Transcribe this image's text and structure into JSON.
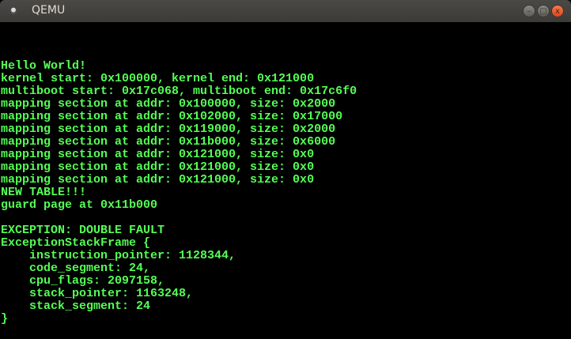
{
  "window": {
    "title": "QEMU",
    "icon": "qemu-app-icon"
  },
  "controls": {
    "minimize": "–",
    "maximize": "□",
    "close": "x"
  },
  "colors": {
    "console_text": "#55ff55",
    "background": "#000000",
    "close_button": "#e9532a"
  },
  "console": {
    "lines": [
      "Hello World!",
      "kernel start: 0x100000, kernel end: 0x121000",
      "multiboot start: 0x17c068, multiboot end: 0x17c6f0",
      "mapping section at addr: 0x100000, size: 0x2000",
      "mapping section at addr: 0x102000, size: 0x17000",
      "mapping section at addr: 0x119000, size: 0x2000",
      "mapping section at addr: 0x11b000, size: 0x6000",
      "mapping section at addr: 0x121000, size: 0x0",
      "mapping section at addr: 0x121000, size: 0x0",
      "mapping section at addr: 0x121000, size: 0x0",
      "NEW TABLE!!!",
      "guard page at 0x11b000",
      "",
      "EXCEPTION: DOUBLE FAULT",
      "ExceptionStackFrame {",
      "    instruction_pointer: 1128344,",
      "    code_segment: 24,",
      "    cpu_flags: 2097158,",
      "    stack_pointer: 1163248,",
      "    stack_segment: 24",
      "}"
    ]
  }
}
